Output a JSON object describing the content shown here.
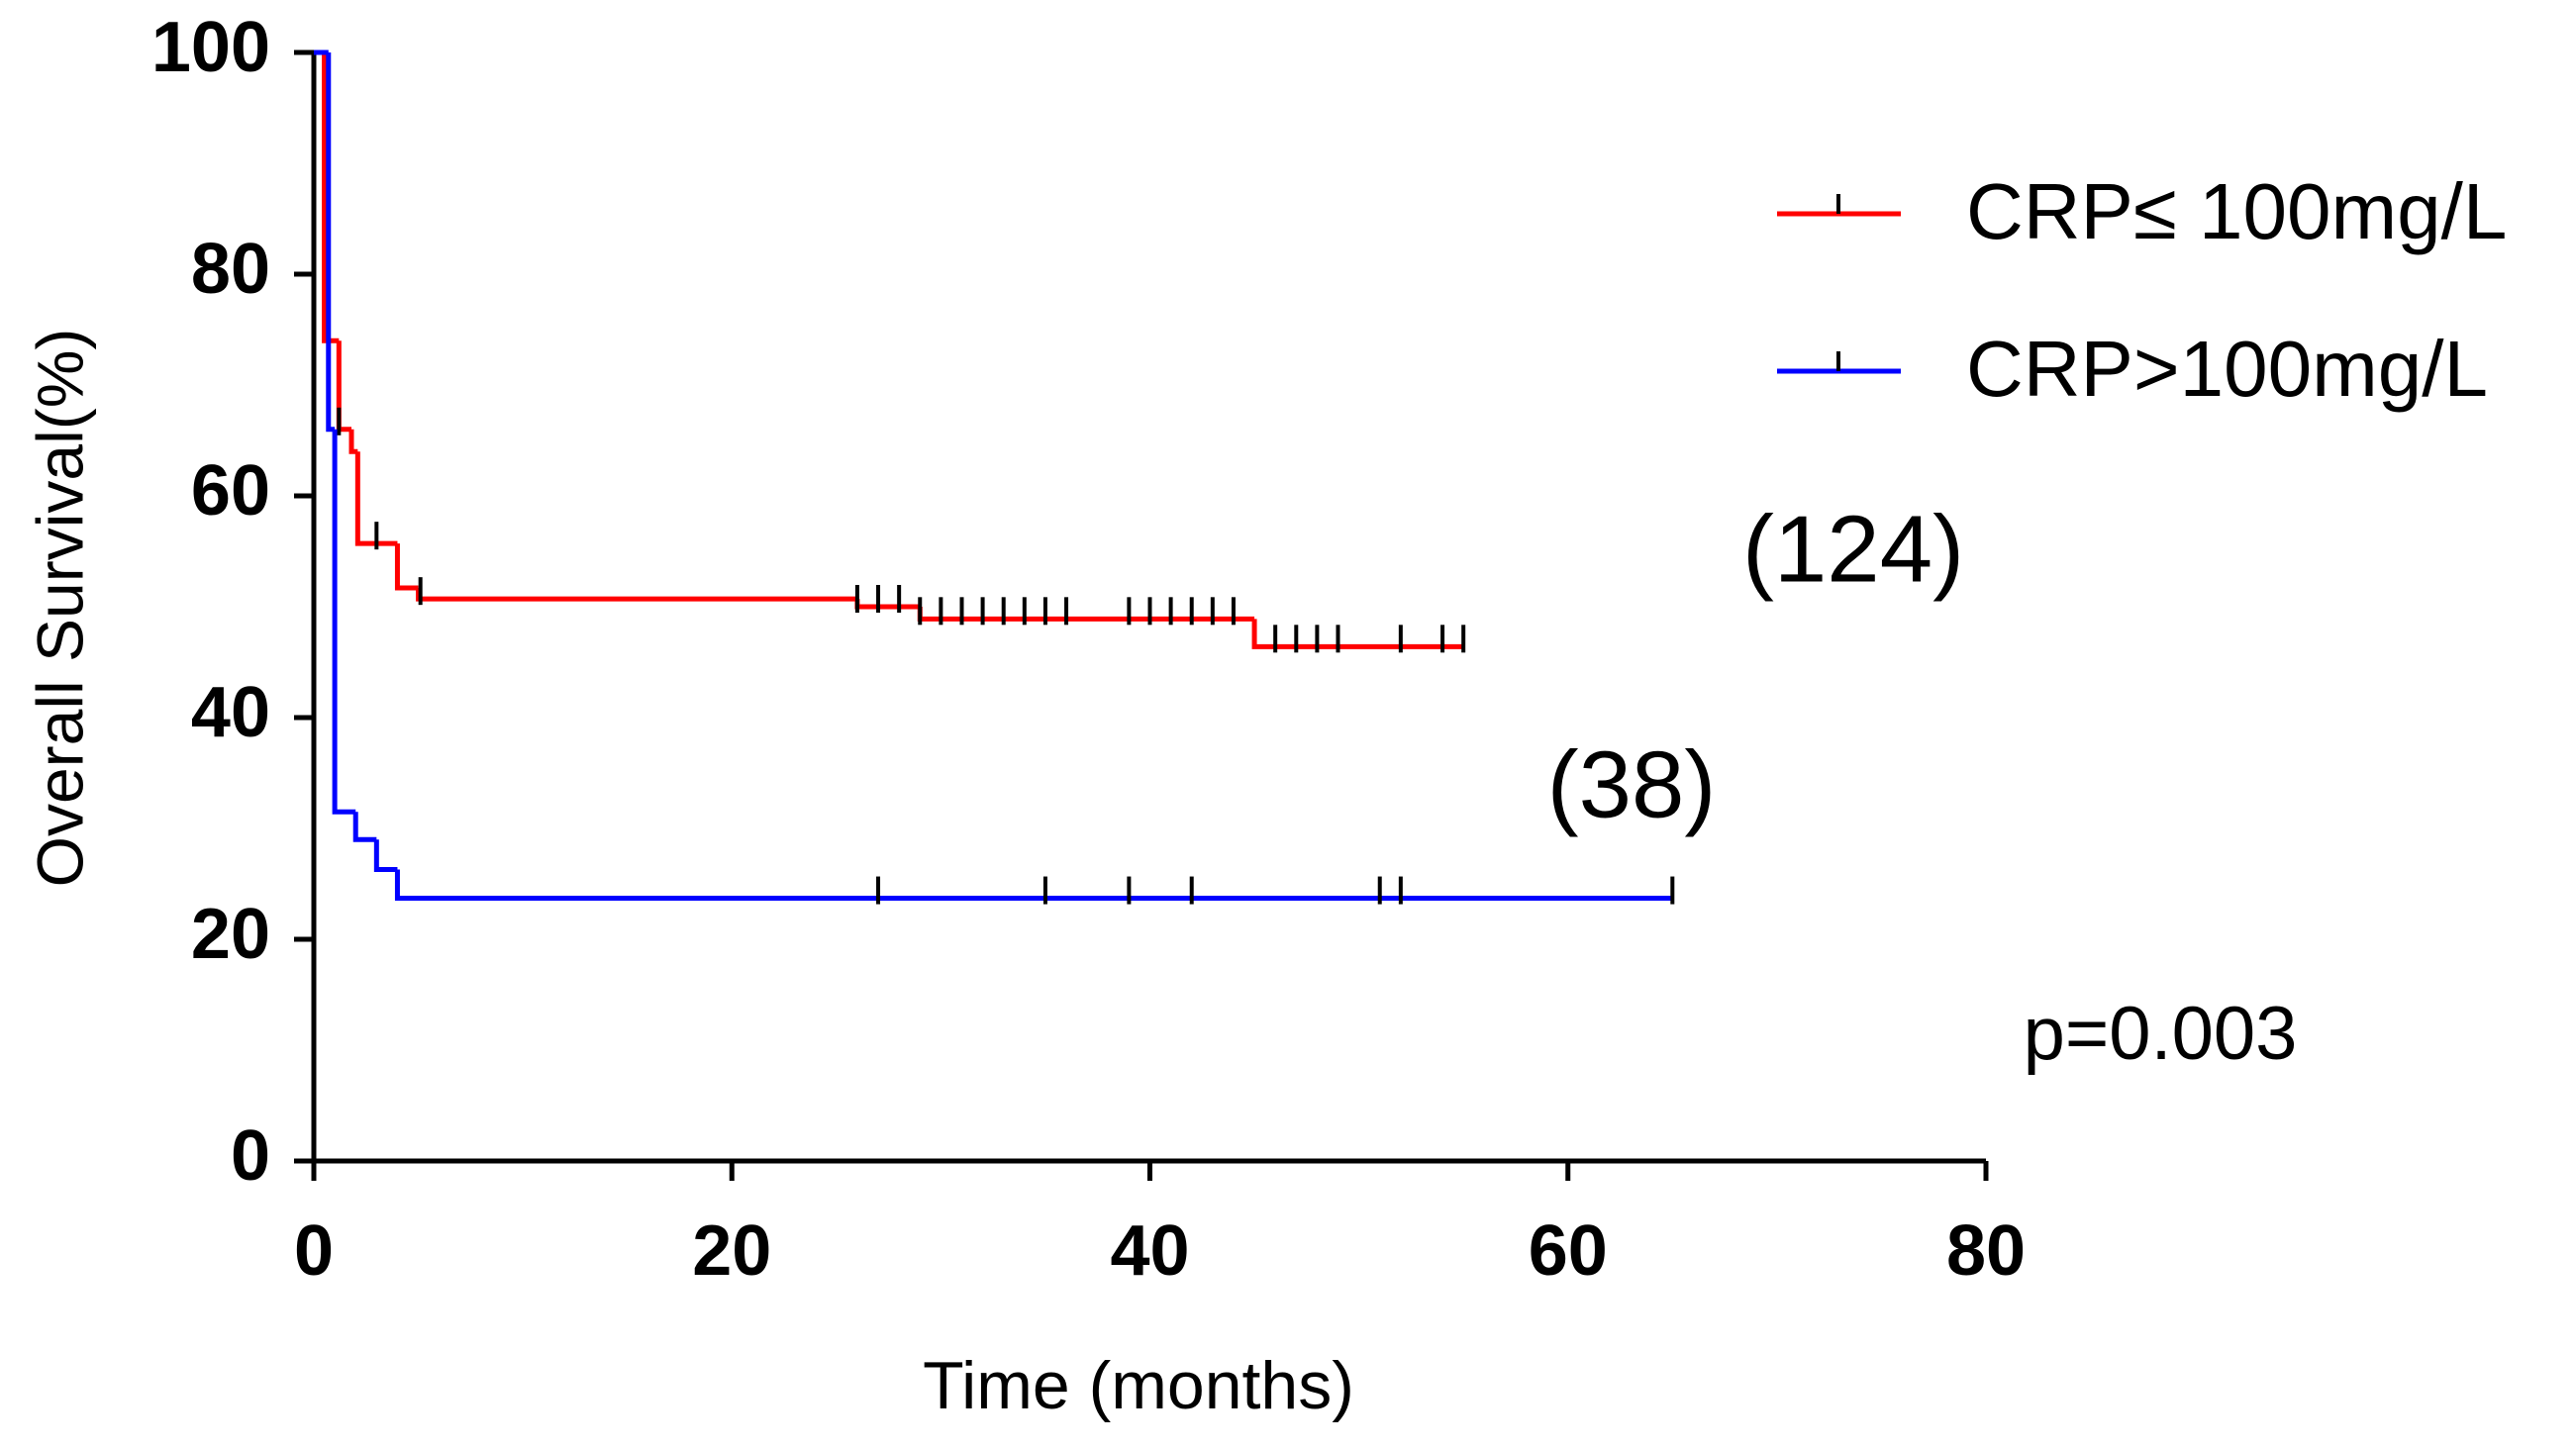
{
  "chart_data": {
    "type": "kaplan-meier",
    "xlabel": "Time (months)",
    "ylabel": "Overall Survival(%)",
    "xlim": [
      0,
      80
    ],
    "xticks": [
      0,
      20,
      40,
      60,
      80
    ],
    "ylim": [
      0,
      100
    ],
    "yticks": [
      0,
      20,
      40,
      60,
      80,
      100
    ],
    "censor_color": "#000000",
    "legend": "upper right",
    "series": [
      {
        "name": "CRP≤ 100mg/L",
        "color": "#ff0000",
        "x": [
          0,
          0.5,
          1.2,
          1.8,
          2.1,
          4,
          5,
          26,
          29,
          45,
          55
        ],
        "values": [
          100,
          74,
          66,
          64,
          55.7,
          51.7,
          50.7,
          50,
          48.9,
          46.4,
          46.4
        ],
        "censored": {
          "x": [
            1.2,
            3,
            5.1,
            26,
            27,
            28,
            29,
            30,
            31,
            32,
            33,
            34,
            35,
            36,
            39,
            40,
            41,
            42,
            43,
            44,
            46,
            47,
            48,
            49,
            52,
            54,
            55
          ],
          "values": [
            66,
            55.7,
            50.7,
            50,
            50,
            50,
            48.9,
            48.9,
            48.9,
            48.9,
            48.9,
            48.9,
            48.9,
            48.9,
            48.9,
            48.9,
            48.9,
            48.9,
            48.9,
            48.9,
            46.4,
            46.4,
            46.4,
            46.4,
            46.4,
            46.4,
            46.4
          ]
        }
      },
      {
        "name": "CRP>100mg/L",
        "color": "#0000ff",
        "x": [
          0,
          0.7,
          1,
          2,
          3,
          4,
          65
        ],
        "values": [
          100,
          66,
          31.5,
          29,
          26.3,
          23.7,
          23.7
        ],
        "censored": {
          "x": [
            27,
            35,
            39,
            42,
            51,
            52,
            65
          ],
          "values": [
            23.7,
            23.7,
            23.7,
            23.7,
            23.7,
            23.7,
            23.7
          ]
        }
      }
    ],
    "annotations": [
      "(124)",
      "(38)",
      "p=0.003"
    ]
  }
}
